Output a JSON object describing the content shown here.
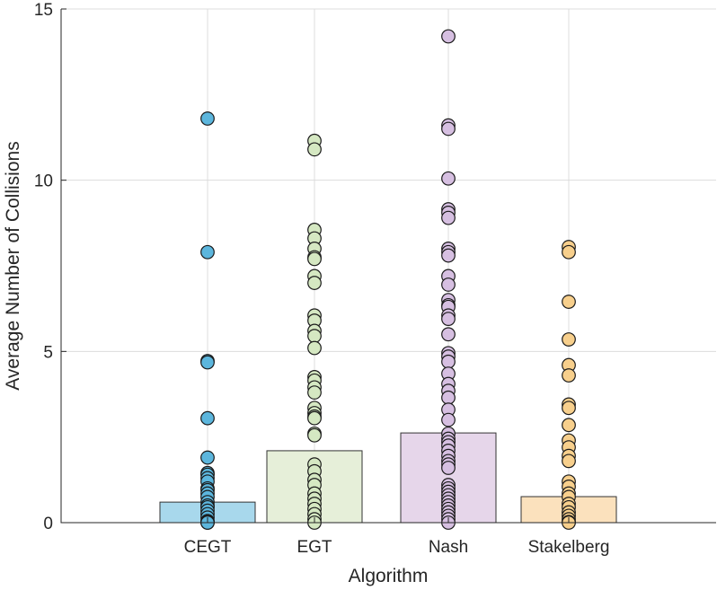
{
  "chart_data": {
    "type": "bar",
    "xlabel": "Algorithm",
    "ylabel": "Average Number of Collisions",
    "ylim": [
      0,
      15
    ],
    "yticks": [
      0,
      5,
      10,
      15
    ],
    "grid": true,
    "categories": [
      "CEGT",
      "EGT",
      "Nash",
      "Stakelberg"
    ],
    "values": [
      0.6,
      2.1,
      2.62,
      0.76
    ],
    "bar_colors": [
      "#a8d8ec",
      "#e6efd9",
      "#e6d6ea",
      "#fbe1bd"
    ],
    "point_colors": [
      "#5cb6dd",
      "#d5e8c2",
      "#d6bfe1",
      "#f7cf8c"
    ],
    "points": [
      [
        11.8,
        7.9,
        4.72,
        4.68,
        3.05,
        1.9,
        1.45,
        1.4,
        1.3,
        1.2,
        1.0,
        0.95,
        0.85,
        0.75,
        0.6,
        0.5,
        0.45,
        0.35,
        0.25,
        0.15,
        0.05,
        0.02,
        0.0,
        0.0
      ],
      [
        11.15,
        10.9,
        8.55,
        8.3,
        8.0,
        7.75,
        7.7,
        7.2,
        7.0,
        6.05,
        5.9,
        5.6,
        5.45,
        5.1,
        4.25,
        4.15,
        3.95,
        3.8,
        3.35,
        3.2,
        3.1,
        3.05,
        2.6,
        2.55,
        1.7,
        1.5,
        1.25,
        1.1,
        0.85,
        0.7,
        0.55,
        0.4,
        0.25,
        0.1,
        0.0
      ],
      [
        14.2,
        11.6,
        11.5,
        10.05,
        9.15,
        9.05,
        8.9,
        8.0,
        7.9,
        7.8,
        7.2,
        6.95,
        6.5,
        6.35,
        6.3,
        6.05,
        5.95,
        5.5,
        4.95,
        4.85,
        4.7,
        4.35,
        4.05,
        3.85,
        3.65,
        3.3,
        3.0,
        2.6,
        2.45,
        2.35,
        2.25,
        2.1,
        1.95,
        1.8,
        1.7,
        1.6,
        1.1,
        1.0,
        0.9,
        0.8,
        0.7,
        0.6,
        0.5,
        0.4,
        0.3,
        0.2,
        0.1,
        0.0
      ],
      [
        8.05,
        7.9,
        6.45,
        5.35,
        4.6,
        4.3,
        3.45,
        3.35,
        2.85,
        2.4,
        2.2,
        1.95,
        1.8,
        1.2,
        1.05,
        0.85,
        0.75,
        0.55,
        0.45,
        0.3,
        0.2,
        0.1,
        0.02,
        0.0
      ]
    ]
  }
}
